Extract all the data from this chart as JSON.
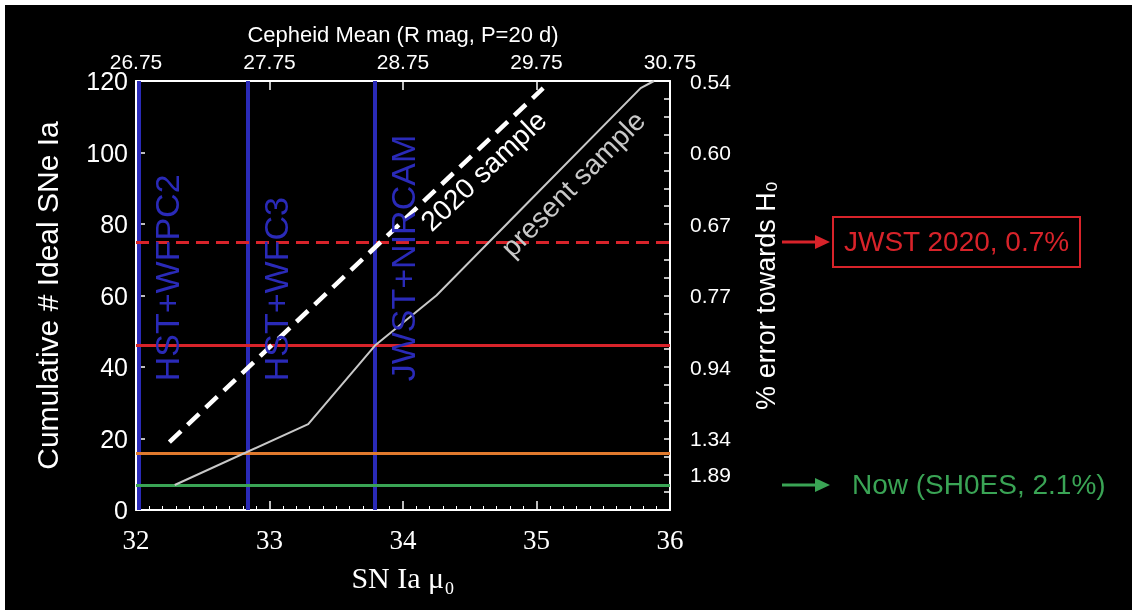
{
  "chart_data": {
    "type": "line",
    "xlabel": "SN Ia μ₀",
    "ylabel": "Cumulative # Ideal SNe Ia",
    "x2label": "Cepheid Mean (R mag, P=20 d)",
    "y2label": "% error towards H₀",
    "xlim": [
      32,
      36
    ],
    "xticks": [
      32,
      33,
      34,
      35,
      36
    ],
    "x2lim": [
      26.75,
      30.75
    ],
    "x2ticks": [
      26.75,
      27.75,
      28.75,
      29.75,
      30.75
    ],
    "ylim": [
      0,
      120
    ],
    "yticks": [
      0,
      20,
      40,
      60,
      80,
      100,
      120
    ],
    "y2_categories": [
      "0.54",
      null,
      null,
      null,
      "0.60",
      null,
      null,
      null,
      "0.67",
      null,
      null,
      null,
      "0.77",
      null,
      null,
      null,
      "0.94",
      null,
      null,
      null,
      "1.34",
      null,
      "1.89",
      null,
      null
    ],
    "marker": "none",
    "series": [
      {
        "name": "2020 sample",
        "color": "#ffffff",
        "line_style": "dashed",
        "x": [
          32.25,
          35.05
        ],
        "values": [
          19,
          118
        ]
      },
      {
        "name": "present sample",
        "color": "#c8c8c8",
        "line_style": "solid",
        "x": [
          32.29,
          33.29,
          33.79,
          34.25,
          35.78,
          35.88
        ],
        "values": [
          7,
          24,
          46,
          60,
          118,
          120
        ]
      }
    ],
    "ref_lines": [
      {
        "axis": "x",
        "value": 32.02,
        "label": "HST+WFPC2",
        "color": "#2a2ab8"
      },
      {
        "axis": "x",
        "value": 32.84,
        "label": "HST+WFC3",
        "color": "#2a2ab8"
      },
      {
        "axis": "x",
        "value": 33.79,
        "label": "JWST+NIRCAM",
        "color": "#2a2ab8"
      },
      {
        "axis": "y",
        "value": 75,
        "label": "JWST 2020, 0.7%",
        "color": "#d8232a",
        "line_style": "dashed"
      },
      {
        "axis": "y",
        "value": 46,
        "color": "#d8232a"
      },
      {
        "axis": "y",
        "value": 16,
        "color": "#e07a2e"
      },
      {
        "axis": "y",
        "value": 7,
        "label": "Now (SH0ES, 2.1%)",
        "color": "#3aa455"
      }
    ]
  }
}
